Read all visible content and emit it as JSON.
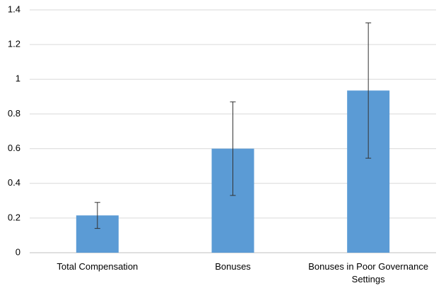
{
  "chart_data": {
    "type": "bar",
    "categories": [
      "Total Compensation",
      "Bonuses",
      "Bonuses in Poor Governance Settings"
    ],
    "values": [
      0.215,
      0.6,
      0.935
    ],
    "errors": [
      0.075,
      0.27,
      0.39
    ],
    "color": "#5b9bd5",
    "ylim": [
      0,
      1.4
    ],
    "yticks": [
      0,
      0.2,
      0.4,
      0.6,
      0.8,
      1,
      1.2,
      1.4
    ],
    "grid": true
  }
}
